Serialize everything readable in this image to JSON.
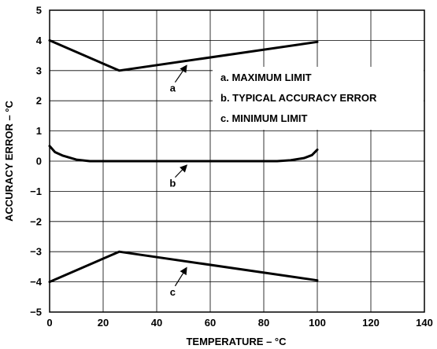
{
  "chart_data": {
    "type": "line",
    "xlabel": "TEMPERATURE – °C",
    "ylabel": "ACCURACY ERROR – °C",
    "xlim": [
      0,
      140
    ],
    "ylim": [
      -5,
      5
    ],
    "x_ticks": [
      "0",
      "20",
      "40",
      "60",
      "80",
      "100",
      "120",
      "140"
    ],
    "y_ticks": [
      "5",
      "4",
      "3",
      "2",
      "1",
      "0",
      "−1",
      "−2",
      "−3",
      "−4",
      "−5"
    ],
    "grid": true,
    "legend_items": [
      "a. MAXIMUM LIMIT",
      "b. TYPICAL ACCURACY ERROR",
      "c. MINIMUM LIMIT"
    ],
    "series": [
      {
        "name": "a",
        "x": [
          0,
          26,
          100
        ],
        "y": [
          4,
          3,
          3.95
        ]
      },
      {
        "name": "b",
        "x": [
          0,
          2,
          5,
          10,
          15,
          25,
          50,
          75,
          85,
          90,
          95,
          98,
          100
        ],
        "y": [
          0.5,
          0.3,
          0.18,
          0.05,
          0,
          0,
          0,
          0,
          0,
          0.03,
          0.1,
          0.2,
          0.38
        ]
      },
      {
        "name": "c",
        "x": [
          0,
          26,
          100
        ],
        "y": [
          -4,
          -3,
          -3.95
        ]
      }
    ],
    "annotations": [
      {
        "label": "a",
        "text_x": 46,
        "text_y": 2.3,
        "arrow_to_x": 51,
        "arrow_to_y": 3.3
      },
      {
        "label": "b",
        "text_x": 46,
        "text_y": -0.85,
        "arrow_to_x": 51,
        "arrow_to_y": 0
      },
      {
        "label": "c",
        "text_x": 46,
        "text_y": -4.45,
        "arrow_to_x": 51,
        "arrow_to_y": -3.4
      }
    ]
  }
}
